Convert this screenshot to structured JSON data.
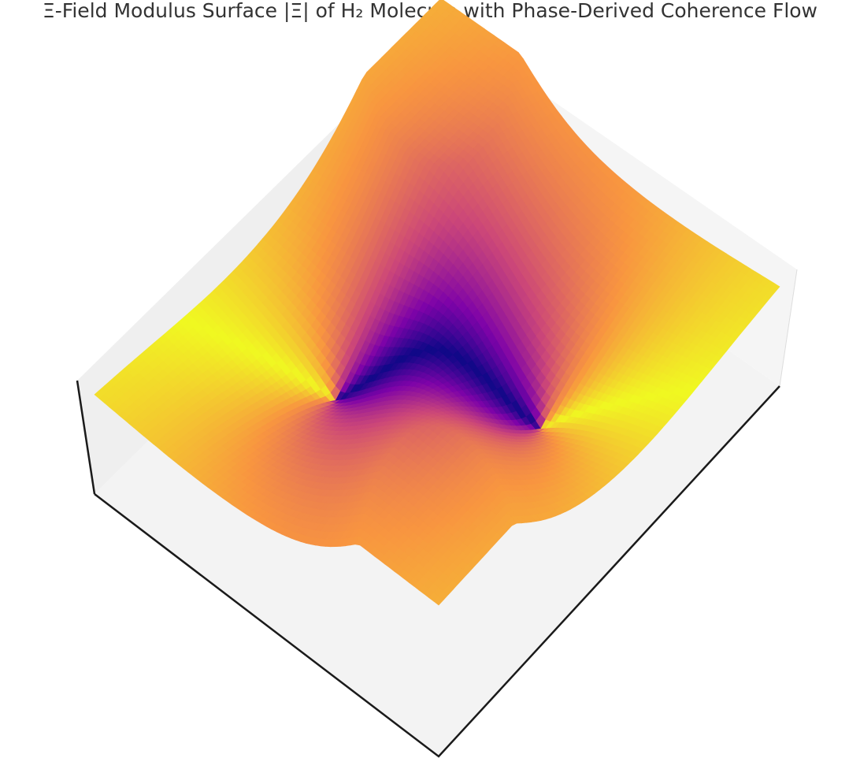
{
  "chart_data": {
    "type": "surface",
    "title": "Ξ-Field Modulus Surface |Ξ| of H₂ Molecule with Phase-Derived Coherence Flow",
    "xlabel": "",
    "ylabel": "",
    "zlabel": "",
    "grid": false,
    "colormap": "plasma",
    "colormap_stops": [
      "#0d0887",
      "#7e03a8",
      "#cc4778",
      "#f89540",
      "#f0f921"
    ],
    "color_by": "phase",
    "surface_description": "Saddle-shaped modulus surface with two high yellow ridges meeting at a central saddle and two low purple wells with cusp features",
    "axes_visible": false,
    "pane_color": "#f2f2f2",
    "edge_color": "#1a1a1a"
  }
}
